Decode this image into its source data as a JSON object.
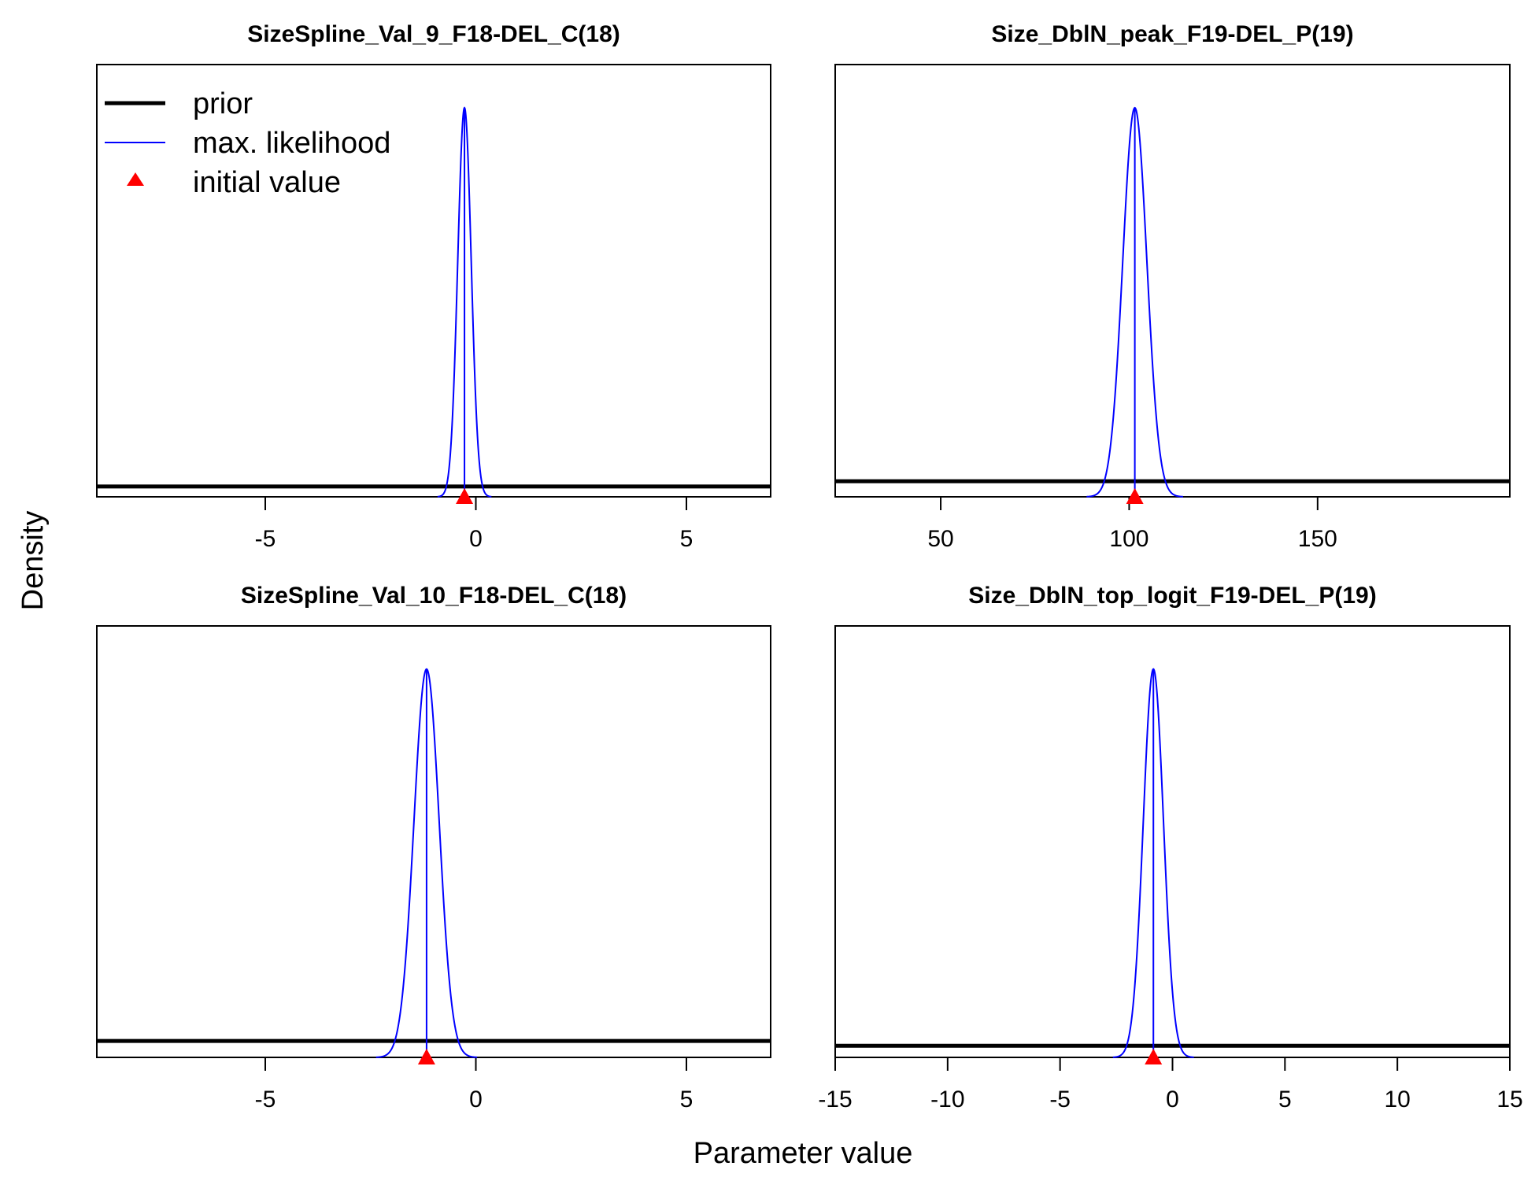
{
  "figure": {
    "ylabel": "Density",
    "xlabel": "Parameter value",
    "legend": {
      "placement": "top-left of first panel",
      "items": [
        {
          "label": "prior",
          "color": "#000000",
          "style": "thick-line"
        },
        {
          "label": "max. likelihood",
          "color": "#0000ff",
          "style": "thin-line"
        },
        {
          "label": "initial value",
          "color": "#ff0000",
          "style": "triangle"
        }
      ]
    }
  },
  "chart_data": [
    {
      "type": "line",
      "title": "SizeSpline_Val_9_F18-DEL_C(18)",
      "xlim": [
        -9,
        7
      ],
      "xticks": [
        -5,
        0,
        5
      ],
      "tick_labels": [
        "-5",
        "0",
        "5"
      ],
      "prior_density": 0.024,
      "ml_mean": -0.27,
      "ml_sd": 0.16,
      "initial_value": -0.27,
      "peak_density": 0.9
    },
    {
      "type": "line",
      "title": "Size_DblN_peak_F19-DEL_P(19)",
      "xlim": [
        22,
        201
      ],
      "xticks": [
        50,
        100,
        150
      ],
      "tick_labels": [
        "50",
        "100",
        "150"
      ],
      "prior_density": 0.036,
      "ml_mean": 101.5,
      "ml_sd": 3.2,
      "initial_value": 101.5,
      "peak_density": 0.9
    },
    {
      "type": "line",
      "title": "SizeSpline_Val_10_F18-DEL_C(18)",
      "xlim": [
        -9,
        7
      ],
      "xticks": [
        -5,
        0,
        5
      ],
      "tick_labels": [
        "-5",
        "0",
        "5"
      ],
      "prior_density": 0.038,
      "ml_mean": -1.17,
      "ml_sd": 0.3,
      "initial_value": -1.17,
      "peak_density": 0.9
    },
    {
      "type": "line",
      "title": "Size_DblN_top_logit_F19-DEL_P(19)",
      "xlim": [
        -15,
        15
      ],
      "xticks": [
        -15,
        -10,
        -5,
        0,
        5,
        10,
        15
      ],
      "tick_labels": [
        "-15",
        "-10",
        "-5",
        "0",
        "5",
        "10",
        "15"
      ],
      "prior_density": 0.027,
      "ml_mean": -0.85,
      "ml_sd": 0.45,
      "initial_value": -0.85,
      "peak_density": 0.9
    }
  ]
}
